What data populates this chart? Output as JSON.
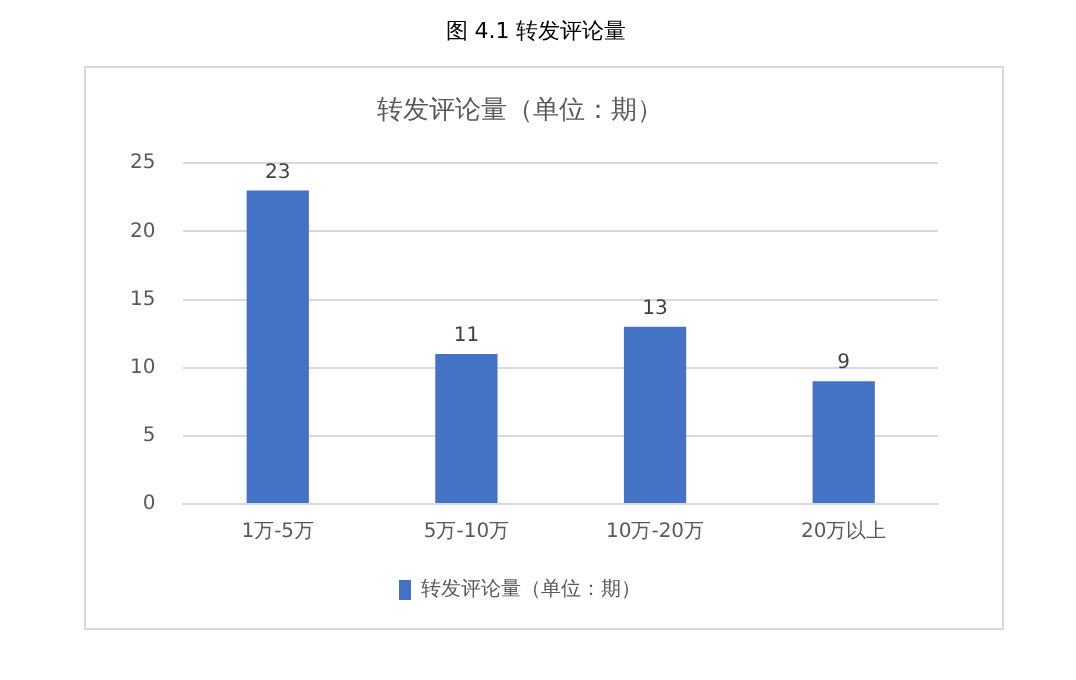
{
  "chart_data": {
    "type": "bar",
    "title": "转发评论量（单位：期）",
    "annotations": [
      "图 4.1 转发评论量"
    ],
    "categories": [
      "1万-5万",
      "5万-10万",
      "10万-20万",
      "20万以上"
    ],
    "series": [
      {
        "name": "转发评论量（单位：期）",
        "color": "#4472c4",
        "values": [
          23,
          11,
          13,
          9
        ]
      }
    ],
    "ylim": [
      0,
      25
    ],
    "yticks": [
      0,
      5,
      10,
      15,
      20,
      25
    ],
    "grid": "y",
    "legend": "bottom",
    "data_labels": true
  }
}
